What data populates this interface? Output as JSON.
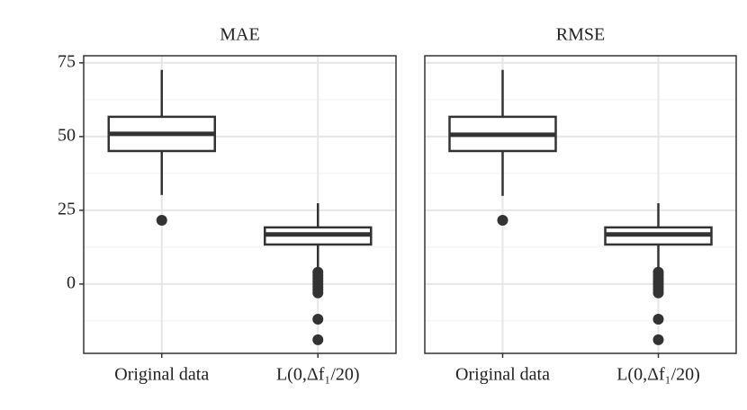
{
  "chart_data": [
    {
      "type": "box",
      "title": "MAE",
      "categories": [
        "Original data",
        "L(0,Δf₁/20)"
      ],
      "boxes": [
        {
          "whislo": 30.2,
          "q1": 45.1,
          "med": 50.9,
          "q3": 56.7,
          "whishi": 72.6,
          "fliers": [
            21.6
          ]
        },
        {
          "whislo": 5.5,
          "q1": 13.4,
          "med": 16.8,
          "q3": 19.2,
          "whishi": 27.4,
          "fliers": [
            4,
            3,
            2,
            1,
            0,
            -1,
            -2,
            -3,
            -11.9,
            -18.9
          ]
        }
      ],
      "ylim": [
        -23.5,
        77.4
      ],
      "yticks": [
        0,
        25,
        50,
        75
      ],
      "minor_yticks": [
        -12.5,
        12.5,
        37.5,
        62.5
      ],
      "grid": true
    },
    {
      "type": "box",
      "title": "RMSE",
      "categories": [
        "Original data",
        "L(0,Δf₁/20)"
      ],
      "boxes": [
        {
          "whislo": 29.9,
          "q1": 45.1,
          "med": 50.6,
          "q3": 56.7,
          "whishi": 72.6,
          "fliers": [
            21.6
          ]
        },
        {
          "whislo": 5.5,
          "q1": 13.4,
          "med": 16.8,
          "q3": 19.2,
          "whishi": 27.4,
          "fliers": [
            4,
            3,
            2,
            1,
            0,
            -1,
            -2,
            -3,
            -11.9,
            -18.9
          ]
        }
      ],
      "ylim": [
        -23.5,
        77.4
      ],
      "yticks": [
        0,
        25,
        50,
        75
      ],
      "minor_yticks": [
        -12.5,
        12.5,
        37.5,
        62.5
      ],
      "grid": true
    }
  ]
}
